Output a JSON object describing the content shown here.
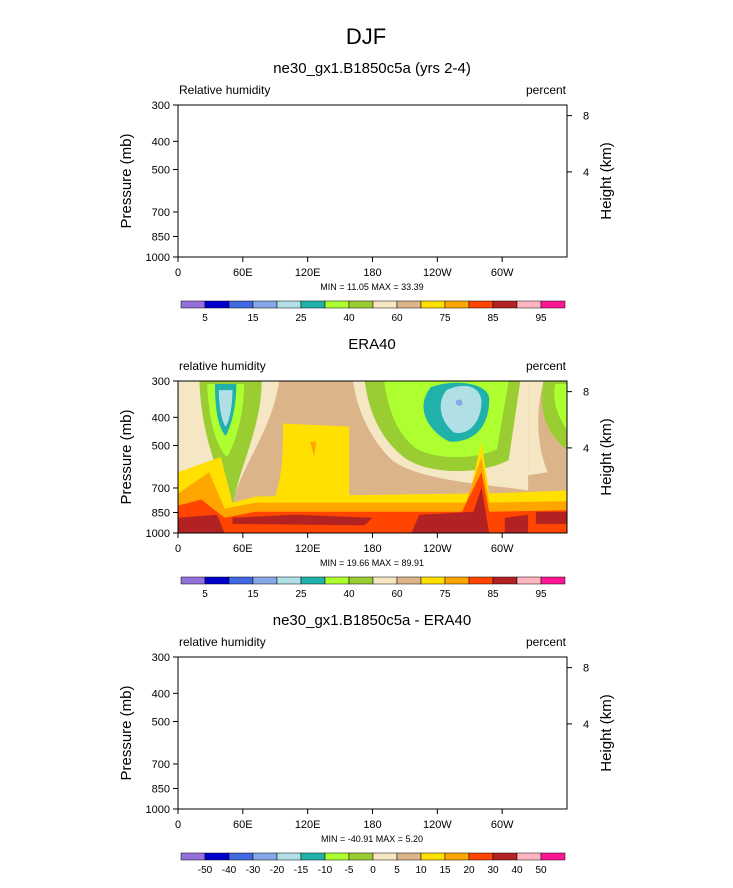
{
  "page": {
    "title": "DJF"
  },
  "chart_data": [
    {
      "type": "contour",
      "title": "ne30_gx1.B1850c5a (yrs 2-4)",
      "left_label": "Relative humidity",
      "right_label": "percent",
      "ylabel": "Pressure (mb)",
      "ylabel_right": "Height (km)",
      "x_ticks": [
        "0",
        "60E",
        "120E",
        "180",
        "120W",
        "60W"
      ],
      "y_ticks": [
        "300",
        "400",
        "500",
        "700",
        "850",
        "1000"
      ],
      "right_ticks": [
        "8",
        "4"
      ],
      "stats": "MIN = 11.05  MAX = 33.39",
      "filled": false,
      "colorbar": {
        "colors": [
          "#9370db",
          "#0000cd",
          "#4169e1",
          "#87a8e8",
          "#b0e0e6",
          "#20b2aa",
          "#adff2f",
          "#9acd32",
          "#f5e6c4",
          "#dcb48a",
          "#ffe000",
          "#ffa500",
          "#ff4500",
          "#b22222",
          "#ffb6c1",
          "#ff1493"
        ],
        "labels": [
          "5",
          "15",
          "25",
          "40",
          "60",
          "75",
          "85",
          "95"
        ]
      }
    },
    {
      "type": "contour",
      "title": "ERA40",
      "left_label": "relative humidity",
      "right_label": "percent",
      "ylabel": "Pressure (mb)",
      "ylabel_right": "Height (km)",
      "x_ticks": [
        "0",
        "60E",
        "120E",
        "180",
        "120W",
        "60W"
      ],
      "y_ticks": [
        "300",
        "400",
        "500",
        "700",
        "850",
        "1000"
      ],
      "right_ticks": [
        "8",
        "4"
      ],
      "stats": "MIN = 19.66  MAX = 89.91",
      "filled": true,
      "colorbar": {
        "colors": [
          "#9370db",
          "#0000cd",
          "#4169e1",
          "#87a8e8",
          "#b0e0e6",
          "#20b2aa",
          "#adff2f",
          "#9acd32",
          "#f5e6c4",
          "#dcb48a",
          "#ffe000",
          "#ffa500",
          "#ff4500",
          "#b22222",
          "#ffb6c1",
          "#ff1493"
        ],
        "labels": [
          "5",
          "15",
          "25",
          "40",
          "60",
          "75",
          "85",
          "95"
        ]
      }
    },
    {
      "type": "contour",
      "title": "ne30_gx1.B1850c5a - ERA40",
      "left_label": "relative humidity",
      "right_label": "percent",
      "ylabel": "Pressure (mb)",
      "ylabel_right": "Height (km)",
      "x_ticks": [
        "0",
        "60E",
        "120E",
        "180",
        "120W",
        "60W"
      ],
      "y_ticks": [
        "300",
        "400",
        "500",
        "700",
        "850",
        "1000"
      ],
      "right_ticks": [
        "8",
        "4"
      ],
      "stats": "MIN = -40.91  MAX =  5.20",
      "filled": false,
      "colorbar": {
        "colors": [
          "#9370db",
          "#0000cd",
          "#4169e1",
          "#87a8e8",
          "#b0e0e6",
          "#20b2aa",
          "#adff2f",
          "#9acd32",
          "#f5e6c4",
          "#dcb48a",
          "#ffe000",
          "#ffa500",
          "#ff4500",
          "#b22222",
          "#ffb6c1",
          "#ff1493"
        ],
        "labels": [
          "-50",
          "-40",
          "-30",
          "-20",
          "-15",
          "-10",
          "-5",
          "0",
          "5",
          "10",
          "15",
          "20",
          "30",
          "40",
          "50"
        ]
      }
    }
  ]
}
